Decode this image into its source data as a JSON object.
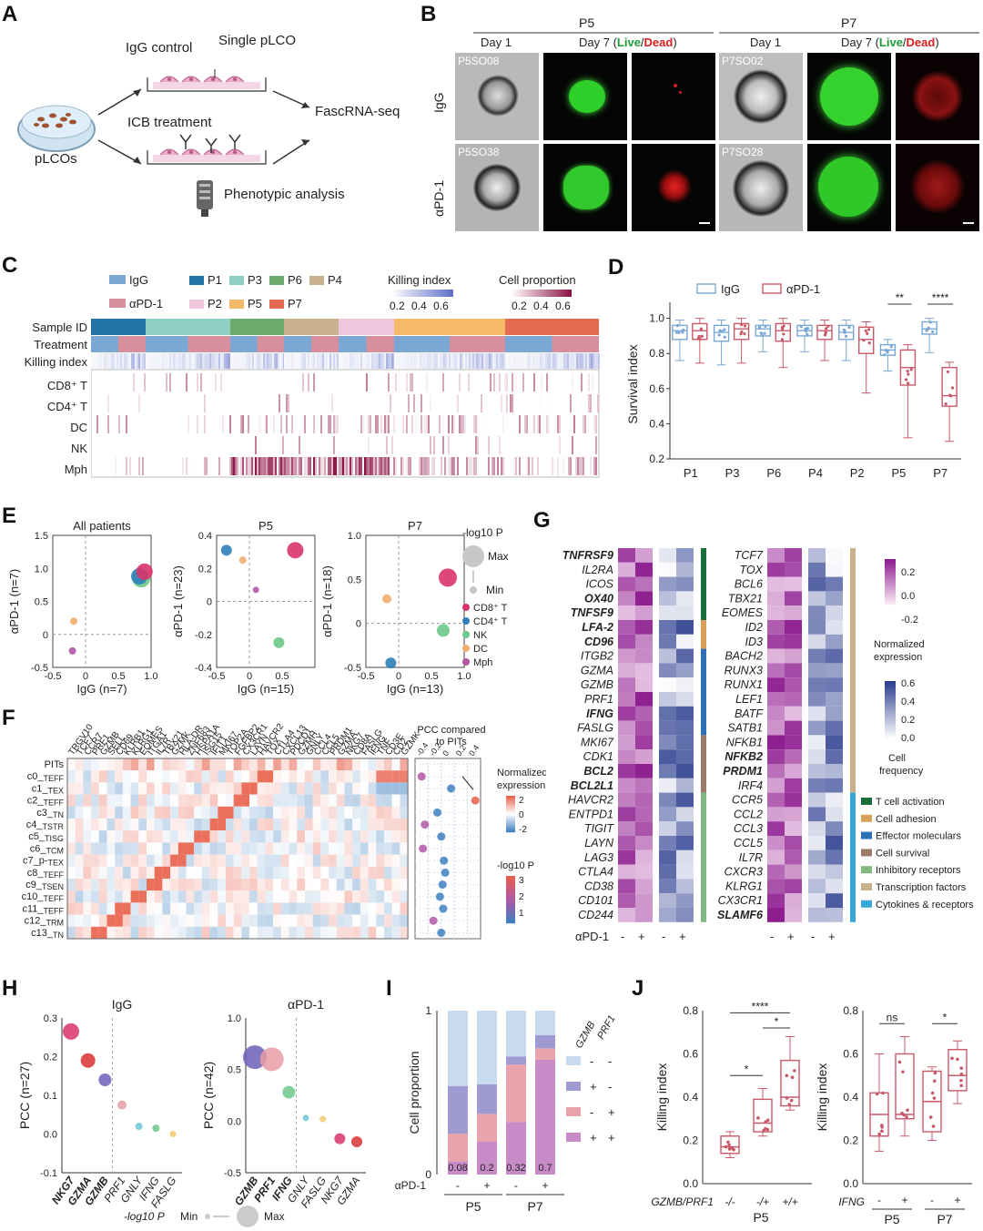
{
  "panels": {
    "a": "A",
    "b": "B",
    "c": "C",
    "d": "D",
    "e": "E",
    "f": "F",
    "g": "G",
    "h": "H",
    "i": "I",
    "j": "J"
  },
  "panelA": {
    "igg_control": "IgG control",
    "single_plco": "Single pLCO",
    "icb_treatment": "ICB treatment",
    "fascrna": "FascRNA-seq",
    "plcos": "pLCOs",
    "phenotypic": "Phenotypic analysis"
  },
  "panelB": {
    "p5": "P5",
    "p7": "P7",
    "day1": "Day 1",
    "day7": "Day 7 (",
    "live": "Live",
    "slash": "/",
    "dead": "Dead",
    "close": ")",
    "row_igg": "IgG",
    "row_apd1": "αPD-1",
    "ids": [
      "P5SO08",
      "P5SO38",
      "P7SO02",
      "P7SO28"
    ]
  },
  "panelC": {
    "legend_igg": "IgG",
    "legend_apd1": "αPD-1",
    "patients": [
      "P1",
      "P2",
      "P3",
      "P5",
      "P6",
      "P7",
      "P4"
    ],
    "killing_title": "Killing index",
    "killing_ticks": [
      "0.2",
      "0.4",
      "0.6"
    ],
    "cellprop_title": "Cell proportion",
    "cellprop_ticks": [
      "0.2",
      "0.4",
      "0.6"
    ],
    "rows": [
      "Sample ID",
      "Treatment",
      "Killing index",
      "CD8⁺ T",
      "CD4⁺ T",
      "DC",
      "NK",
      "Mph"
    ]
  },
  "panelD": {
    "legend_igg": "IgG",
    "legend_apd1": "αPD-1",
    "ylabel": "Survival index",
    "yticks": [
      "1.0",
      "0.8",
      "0.6",
      "0.4",
      "0.2"
    ],
    "xlabels": [
      "P1",
      "P3",
      "P6",
      "P4",
      "P2",
      "P5",
      "P7"
    ],
    "sig_p5": "**",
    "sig_p7": "****"
  },
  "panelE": {
    "titles": [
      "All patients",
      "P5",
      "P7"
    ],
    "ylabels": [
      "αPD-1 (n=7)",
      "αPD-1 (n=23)",
      "αPD-1 (n=18)"
    ],
    "xlabels": [
      "IgG (n=7)",
      "IgG (n=15)",
      "IgG (n=13)"
    ],
    "ticks1_y": [
      "1.5",
      "1.0",
      "0.5",
      "0",
      "-0.5"
    ],
    "ticks1_x": [
      "-0.5",
      "0",
      "0.5",
      "1.0"
    ],
    "ticks2_y": [
      "0.4",
      "0.2",
      "0",
      "-0.2",
      "-0.4"
    ],
    "ticks2_x": [
      "-0.5",
      "0",
      "0.5"
    ],
    "ticks3_y": [
      "1.0",
      "0.5",
      "0",
      "-0.5"
    ],
    "ticks3_x": [
      "-0.5",
      "0",
      "0.5",
      "1.0"
    ],
    "legend_title": "-log10 P",
    "max": "Max",
    "min": "Min",
    "cells": [
      "CD8⁺ T",
      "CD4⁺ T",
      "NK",
      "DC",
      "Mph"
    ]
  },
  "panelF": {
    "genes": [
      "TRGV10",
      "TCF7",
      "CCR7",
      "PRF1",
      "GZMB",
      "SELL",
      "CD69",
      "KLRB1",
      "KLRG1",
      "EOMES",
      "ITGA1",
      "IL7R",
      "TBX21",
      "GZMK",
      "HLA-DR",
      "ZNF683",
      "HSPA1A",
      "ISG15",
      "IFIT1",
      "MKI67",
      "TOP2A",
      "FGFBP2",
      "CX3CR1",
      "LAYN",
      "HAVCR2",
      "TOX",
      "CTLA4",
      "CXCL13",
      "PDCD1",
      "GZMH",
      "GNLY",
      "CCL4",
      "CCL5",
      "PRDM1",
      "GZMA",
      "NKG7",
      "CD8A",
      "FASLG",
      "IFNG",
      "TNF",
      "CD3E",
      "CD2",
      "GZMK"
    ],
    "rows_main": [
      "PITs",
      "c0_",
      "c1_",
      "c2_",
      "c3_",
      "c4_",
      "c5_",
      "c6_",
      "c7_p-",
      "c8_",
      "c9_",
      "c10_",
      "c11_",
      "c12_",
      "c13_"
    ],
    "rows_sub": [
      "",
      "TEFF",
      "TEX",
      "TEFF",
      "TN",
      "TSTR",
      "TISG",
      "TCM",
      "TEX",
      "TEFF",
      "TSEN",
      "TEFF",
      "TEFF",
      "TRM",
      "TN"
    ],
    "pcc_title1": "PCC compared",
    "pcc_title2": "to PITs",
    "pcc_ticks": [
      "-0.4",
      "-0.2",
      "0",
      "0.2",
      "0.4"
    ],
    "norm_title": [
      "Normalized",
      "expression"
    ],
    "norm_ticks": [
      "2",
      "0",
      "-2"
    ],
    "logp_title": "-log10 P",
    "logp_ticks": [
      "3",
      "2",
      "1"
    ]
  },
  "panelG": {
    "genes_left": [
      "TNFRSF9",
      "IL2RA",
      "ICOS",
      "OX40",
      "TNFSF9",
      "LFA-2",
      "CD96",
      "ITGB2",
      "GZMA",
      "GZMB",
      "PRF1",
      "IFNG",
      "FASLG",
      "MKI67",
      "CDK1",
      "BCL2",
      "BCL2L1",
      "HAVCR2",
      "ENTPD1",
      "TIGIT",
      "LAYN",
      "LAG3",
      "CTLA4",
      "CD38",
      "CD101",
      "CD244"
    ],
    "genes_right": [
      "TCF7",
      "TOX",
      "BCL6",
      "TBX21",
      "EOMES",
      "ID2",
      "ID3",
      "BACH2",
      "RUNX3",
      "RUNX1",
      "LEF1",
      "BATF",
      "SATB1",
      "NFKB1",
      "NFKB2",
      "PRDM1",
      "IRF4",
      "CCR5",
      "CCL2",
      "CCL3",
      "CCL5",
      "IL7R",
      "CXCR3",
      "KLRG1",
      "CX3CR1",
      "SLAMF6"
    ],
    "norm_ticks": [
      "0.2",
      "0.0",
      "-0.2"
    ],
    "norm_title": [
      "Normalized",
      "expression"
    ],
    "freq_ticks": [
      "0.6",
      "0.4",
      "0.2",
      "0.0"
    ],
    "freq_title": [
      "Cell",
      "frequency"
    ],
    "categories": [
      "T cell activation",
      "Cell adhesion",
      "Effector moleculars",
      "Cell survival",
      "Inhibitory receptors",
      "Transcription factors",
      "Cytokines & receptors"
    ],
    "category_colors": [
      "#1b6e3a",
      "#d9a05b",
      "#2f6fb6",
      "#9c7a6a",
      "#7fb77e",
      "#c9b08a",
      "#3aa6d6"
    ],
    "xaxis_label": "αPD-1",
    "minus": "-",
    "plus": "+"
  },
  "panelH": {
    "title_igg": "IgG",
    "title_apd1": "αPD-1",
    "ylabel_igg": "PCC (n=27)",
    "ylabel_apd1": "PCC (n=42)",
    "yticks_igg": [
      "0.3",
      "0.2",
      "0.1",
      "0.0",
      "-0.1"
    ],
    "yticks_apd1": [
      "1.0",
      "0.5",
      "0.0",
      "-0.5"
    ],
    "genes_igg": [
      "NKG7",
      "GZMA",
      "GZMB",
      "PRF1",
      "GNLY",
      "IFNG",
      "FASLG"
    ],
    "genes_apd1": [
      "GZMB",
      "PRF1",
      "IFNG",
      "GNLY",
      "FASLG",
      "NKG7",
      "GZMA"
    ],
    "legend_p": "-log10 P",
    "legend_min": "Min",
    "legend_max": "Max"
  },
  "panelI": {
    "ylabel": "Cell proportion",
    "yticks": [
      "1",
      "0"
    ],
    "bar_values": [
      "0.08",
      "0.2",
      "0.32",
      "0.7"
    ],
    "apd1": "αPD-1",
    "minus": "-",
    "plus": "+",
    "groups": [
      "P5",
      "P7"
    ],
    "legend_head1": "GZMB",
    "legend_head2": "PRF1",
    "legend_rows": [
      [
        "-",
        "-"
      ],
      [
        "+",
        "-"
      ],
      [
        "-",
        "+"
      ],
      [
        "+",
        "+"
      ]
    ]
  },
  "panelJ": {
    "ylabel": "Killing index",
    "yticks": [
      "0.8",
      "0.6",
      "0.4",
      "0.2",
      "0.0"
    ],
    "left_groups": [
      "-/-",
      "-/+",
      "+/+"
    ],
    "left_axis": "GZMB/PRF1",
    "left_patient": "P5",
    "sig_left": [
      "****",
      "*",
      "*"
    ],
    "right_axis": "IFNG",
    "right_groups": [
      "-",
      "+",
      "-",
      "+"
    ],
    "right_patients": [
      "P5",
      "P7"
    ],
    "sig_right": [
      "ns",
      "*"
    ]
  },
  "chart_data": [
    {
      "type": "box",
      "panel": "D",
      "title": "",
      "ylabel": "Survival index",
      "ylim": [
        0.2,
        1.05
      ],
      "categories": [
        "P1",
        "P3",
        "P6",
        "P4",
        "P2",
        "P5",
        "P7"
      ],
      "series": [
        {
          "name": "IgG",
          "median": [
            0.93,
            0.92,
            0.94,
            0.93,
            0.92,
            0.82,
            0.94
          ],
          "q1": [
            0.88,
            0.87,
            0.9,
            0.9,
            0.88,
            0.79,
            0.91
          ],
          "q3": [
            0.96,
            0.96,
            0.96,
            0.96,
            0.96,
            0.85,
            0.98
          ]
        },
        {
          "name": "αPD-1",
          "median": [
            0.93,
            0.94,
            0.93,
            0.93,
            0.88,
            0.72,
            0.56
          ],
          "q1": [
            0.88,
            0.88,
            0.87,
            0.88,
            0.8,
            0.62,
            0.5
          ],
          "q3": [
            0.97,
            0.97,
            0.97,
            0.96,
            0.95,
            0.82,
            0.72
          ]
        }
      ]
    },
    {
      "type": "stacked_bar",
      "panel": "I",
      "ylabel": "Cell proportion",
      "categories": [
        "P5 -",
        "P5 +",
        "P7 -",
        "P7 +"
      ],
      "series": [
        {
          "name": "- -",
          "values": [
            0.46,
            0.45,
            0.28,
            0.15
          ]
        },
        {
          "name": "+ -",
          "values": [
            0.29,
            0.18,
            0.05,
            0.08
          ]
        },
        {
          "name": "- +",
          "values": [
            0.17,
            0.17,
            0.35,
            0.07
          ]
        },
        {
          "name": "+ +",
          "values": [
            0.08,
            0.2,
            0.32,
            0.7
          ]
        }
      ]
    },
    {
      "type": "scatter",
      "panel": "H",
      "title": "IgG",
      "ylabel": "PCC (n=27)",
      "ylim": [
        -0.1,
        0.3
      ],
      "x": [
        "NKG7",
        "GZMA",
        "GZMB",
        "PRF1",
        "GNLY",
        "IFNG",
        "FASLG"
      ],
      "y": [
        0.265,
        0.19,
        0.14,
        0.075,
        0.02,
        0.015,
        0.0
      ]
    },
    {
      "type": "scatter",
      "panel": "H",
      "title": "αPD-1",
      "ylabel": "PCC (n=42)",
      "ylim": [
        -0.5,
        1.0
      ],
      "x": [
        "GZMB",
        "PRF1",
        "IFNG",
        "GNLY",
        "FASLG",
        "NKG7",
        "GZMA"
      ],
      "y": [
        0.62,
        0.6,
        0.28,
        0.03,
        0.02,
        -0.17,
        -0.2
      ]
    }
  ]
}
